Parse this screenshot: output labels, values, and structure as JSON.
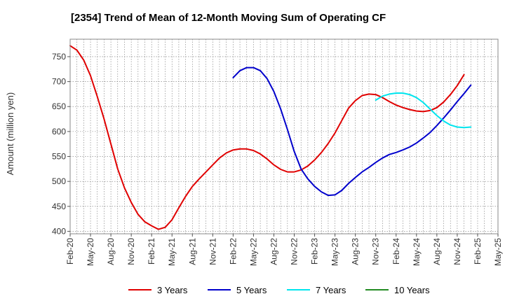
{
  "chart_data": {
    "type": "line",
    "title": "[2354]  Trend of Mean of 12-Month Moving Sum of Operating CF",
    "xlabel": "",
    "ylabel": "Amount (million yen)",
    "ylim": [
      395,
      785
    ],
    "yticks": [
      400,
      450,
      500,
      550,
      600,
      650,
      700,
      750
    ],
    "x_tick_labels": [
      "Feb-20",
      "May-20",
      "Aug-20",
      "Nov-20",
      "Feb-21",
      "May-21",
      "Aug-21",
      "Nov-21",
      "Feb-22",
      "May-22",
      "Aug-22",
      "Nov-22",
      "Feb-23",
      "May-23",
      "Aug-23",
      "Nov-23",
      "Feb-24",
      "May-24",
      "Aug-24",
      "Nov-24",
      "Feb-25",
      "May-25"
    ],
    "x_range_months": [
      0,
      63
    ],
    "grid": true,
    "legend_position": "bottom",
    "series": [
      {
        "name": "3 Years",
        "color": "#e00000",
        "points": [
          [
            0,
            772
          ],
          [
            1,
            763
          ],
          [
            2,
            743
          ],
          [
            3,
            712
          ],
          [
            4,
            670
          ],
          [
            5,
            625
          ],
          [
            6,
            575
          ],
          [
            7,
            525
          ],
          [
            8,
            487
          ],
          [
            9,
            458
          ],
          [
            10,
            434
          ],
          [
            11,
            419
          ],
          [
            12,
            411
          ],
          [
            13,
            404
          ],
          [
            14,
            408
          ],
          [
            15,
            423
          ],
          [
            16,
            447
          ],
          [
            17,
            470
          ],
          [
            18,
            490
          ],
          [
            19,
            505
          ],
          [
            20,
            519
          ],
          [
            21,
            533
          ],
          [
            22,
            547
          ],
          [
            23,
            557
          ],
          [
            24,
            563
          ],
          [
            25,
            565
          ],
          [
            26,
            565
          ],
          [
            27,
            562
          ],
          [
            28,
            555
          ],
          [
            29,
            545
          ],
          [
            30,
            533
          ],
          [
            31,
            524
          ],
          [
            32,
            519
          ],
          [
            33,
            519
          ],
          [
            34,
            523
          ],
          [
            35,
            531
          ],
          [
            36,
            543
          ],
          [
            37,
            558
          ],
          [
            38,
            576
          ],
          [
            39,
            597
          ],
          [
            40,
            622
          ],
          [
            41,
            647
          ],
          [
            42,
            662
          ],
          [
            43,
            672
          ],
          [
            44,
            675
          ],
          [
            45,
            674
          ],
          [
            46,
            668
          ],
          [
            47,
            660
          ],
          [
            48,
            653
          ],
          [
            49,
            648
          ],
          [
            50,
            644
          ],
          [
            51,
            641
          ],
          [
            52,
            640
          ],
          [
            53,
            642
          ],
          [
            54,
            648
          ],
          [
            55,
            659
          ],
          [
            56,
            674
          ],
          [
            57,
            692
          ],
          [
            58,
            714
          ]
        ]
      },
      {
        "name": "5 Years",
        "color": "#0000cc",
        "points": [
          [
            24,
            708
          ],
          [
            25,
            722
          ],
          [
            26,
            728
          ],
          [
            27,
            728
          ],
          [
            28,
            722
          ],
          [
            29,
            706
          ],
          [
            30,
            680
          ],
          [
            31,
            645
          ],
          [
            32,
            604
          ],
          [
            33,
            560
          ],
          [
            34,
            525
          ],
          [
            35,
            505
          ],
          [
            36,
            490
          ],
          [
            37,
            479
          ],
          [
            38,
            472
          ],
          [
            39,
            473
          ],
          [
            40,
            482
          ],
          [
            41,
            496
          ],
          [
            42,
            508
          ],
          [
            43,
            519
          ],
          [
            44,
            528
          ],
          [
            45,
            538
          ],
          [
            46,
            547
          ],
          [
            47,
            554
          ],
          [
            48,
            558
          ],
          [
            49,
            563
          ],
          [
            50,
            569
          ],
          [
            51,
            577
          ],
          [
            52,
            587
          ],
          [
            53,
            598
          ],
          [
            54,
            612
          ],
          [
            55,
            627
          ],
          [
            56,
            643
          ],
          [
            57,
            660
          ],
          [
            58,
            676
          ],
          [
            59,
            693
          ]
        ]
      },
      {
        "name": "7 Years",
        "color": "#00e5ee",
        "points": [
          [
            45,
            663
          ],
          [
            46,
            671
          ],
          [
            47,
            675
          ],
          [
            48,
            677
          ],
          [
            49,
            677
          ],
          [
            50,
            674
          ],
          [
            51,
            668
          ],
          [
            52,
            658
          ],
          [
            53,
            645
          ],
          [
            54,
            632
          ],
          [
            55,
            621
          ],
          [
            56,
            613
          ],
          [
            57,
            609
          ],
          [
            58,
            608
          ],
          [
            59,
            609
          ]
        ]
      },
      {
        "name": "10 Years",
        "color": "#228b22",
        "points": []
      }
    ]
  }
}
